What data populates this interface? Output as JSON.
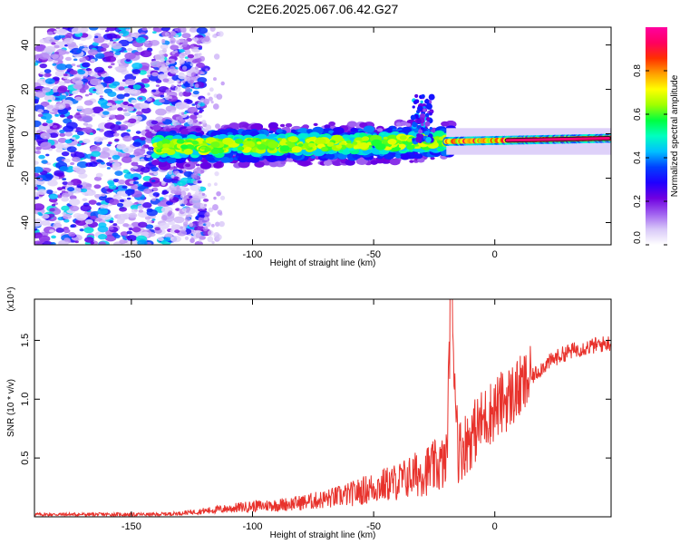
{
  "title": "C2E6.2025.067.06.42.G27",
  "colors": {
    "snr_line": "#e8322c",
    "colormap": [
      "#ffffff",
      "#d8c8f8",
      "#a060f0",
      "#7000e0",
      "#2000ff",
      "#0040ff",
      "#00c0ff",
      "#00ffc0",
      "#00ff40",
      "#a0ff00",
      "#ffff00",
      "#ffa000",
      "#ff3000",
      "#ff0060",
      "#ff00a0"
    ]
  },
  "chart_data": [
    {
      "type": "heatmap",
      "xlabel": "Height of straight line (km)",
      "ylabel": "Frequency (Hz)",
      "xlim": [
        -190,
        48
      ],
      "ylim": [
        -50,
        48
      ],
      "xticks": [
        -150,
        -100,
        -50,
        0
      ],
      "yticks": [
        -40,
        -20,
        0,
        20,
        40
      ],
      "colorbar": {
        "label": "Normalized spectral amplitude",
        "range": [
          0,
          1
        ],
        "ticks": [
          0.0,
          0.2,
          0.4,
          0.6,
          0.8
        ]
      },
      "features": {
        "noise_region_x": [
          -190,
          -127
        ],
        "signal_start_x": -140,
        "signal_freq_at_start": -6,
        "signal_freq_at_end": -2,
        "burst_x": -28,
        "burst_freq": 14
      }
    },
    {
      "type": "line",
      "xlabel": "Height of straight line (km)",
      "ylabel": "SNR (10 * v/v)",
      "y_multiplier": "(x10⁴)",
      "xlim": [
        -190,
        48
      ],
      "ylim": [
        0,
        1.85
      ],
      "xticks": [
        -150,
        -100,
        -50,
        0
      ],
      "yticks": [
        0.5,
        1.0,
        1.5
      ],
      "ytick_labels": [
        "0.5",
        "1.0",
        "1.5"
      ],
      "series": [
        {
          "x": [
            -190,
            -170,
            -150,
            -140,
            -130,
            -120,
            -110,
            -100,
            -90,
            -80,
            -70,
            -60,
            -50,
            -40,
            -30,
            -25,
            -20,
            -18,
            -15,
            -10,
            -5,
            0,
            5,
            10,
            15,
            20,
            25,
            30,
            35,
            40,
            45,
            48
          ],
          "y": [
            0.02,
            0.02,
            0.02,
            0.02,
            0.03,
            0.05,
            0.07,
            0.09,
            0.1,
            0.12,
            0.15,
            0.19,
            0.25,
            0.3,
            0.38,
            0.42,
            0.46,
            1.85,
            0.55,
            0.68,
            0.82,
            0.92,
            1.0,
            1.08,
            1.18,
            1.28,
            1.35,
            1.4,
            1.43,
            1.45,
            1.47,
            1.48
          ]
        }
      ]
    }
  ]
}
